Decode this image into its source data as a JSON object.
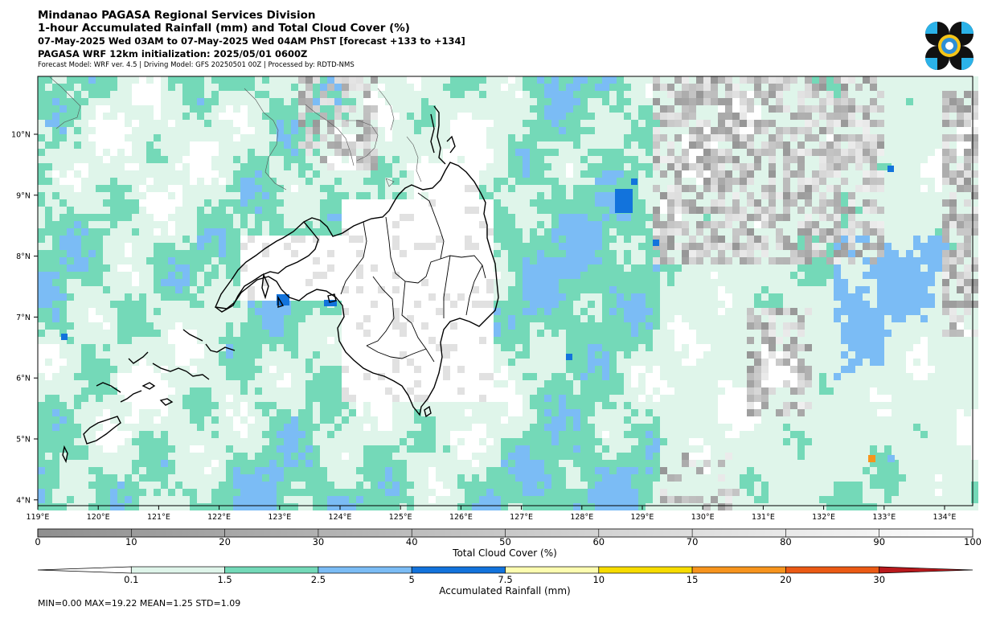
{
  "header": {
    "title": "Mindanao PAGASA Regional Services Division",
    "subtitle": "1-hour Accumulated Rainfall (mm) and Total Cloud Cover (%)",
    "valid_time": "07-May-2025 Wed 03AM to 07-May-2025 Wed 04AM PhST [forecast +133 to +134]",
    "init": "PAGASA WRF 12km initialization: 2025/05/01 0600Z",
    "model_info": "Forecast Model: WRF ver. 4.5 | Driving Model: GFS 20250501 00Z | Processed by: RDTD-NMS"
  },
  "map": {
    "lat_ticks": [
      "10°N",
      "9°N",
      "8°N",
      "7°N",
      "6°N",
      "5°N",
      "4°N"
    ],
    "lon_ticks": [
      "119°E",
      "120°E",
      "121°E",
      "122°E",
      "123°E",
      "124°E",
      "125°E",
      "126°E",
      "127°E",
      "128°E",
      "129°E",
      "130°E",
      "131°E",
      "132°E",
      "133°E",
      "134°E"
    ],
    "rain_colors": {
      "light": "#dff5ea",
      "teal": "#74d9b8",
      "lightblue": "#7bbcf5",
      "blue": "#1273dc",
      "orange": "#f7941d"
    }
  },
  "cloud_bar": {
    "ticks": [
      "0",
      "10",
      "20",
      "30",
      "40",
      "50",
      "60",
      "70",
      "80",
      "90",
      "100"
    ],
    "label": "Total Cloud Cover (%)"
  },
  "rain_bar": {
    "ticks": [
      "0.1",
      "1.5",
      "2.5",
      "5",
      "7.5",
      "10",
      "15",
      "20",
      "30"
    ],
    "label": "Accumulated Rainfall (mm)",
    "colors": [
      "#dff5ea",
      "#74d9b8",
      "#7bbcf5",
      "#1273dc",
      "#fdfdb0",
      "#f7dc00",
      "#f7941d",
      "#eb5a14",
      "#b9191c"
    ]
  },
  "stats": "MIN=0.00   MAX=19.22   MEAN=1.25   STD=1.09"
}
